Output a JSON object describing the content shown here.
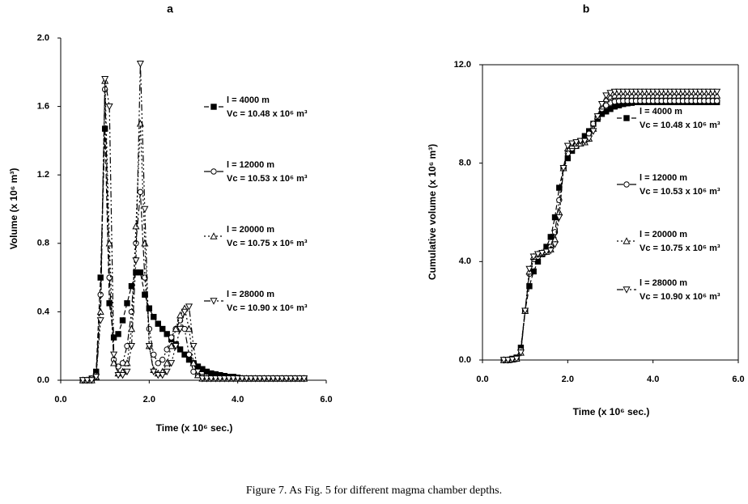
{
  "caption": "Figure 7. As Fig. 5 for different magma chamber depths.",
  "chart_data": [
    {
      "type": "line",
      "title": "a",
      "x_label": "Time (x 10⁶ sec.)",
      "y_label": "Volume (x 10⁶ m³)",
      "xlim": [
        0,
        6
      ],
      "ylim": [
        0,
        2
      ],
      "xticks": [
        {
          "value": 0,
          "label": "0.0"
        },
        {
          "value": 2,
          "label": "2.0"
        },
        {
          "value": 4,
          "label": "4.0"
        },
        {
          "value": 6,
          "label": "6.0"
        }
      ],
      "yticks": [
        {
          "value": 0,
          "label": "0.0"
        },
        {
          "value": 0.4,
          "label": "0.4"
        },
        {
          "value": 0.8,
          "label": "0.8"
        },
        {
          "value": 1.2,
          "label": "1.2"
        },
        {
          "value": 1.6,
          "label": "1.6"
        },
        {
          "value": 2,
          "label": "2.0"
        }
      ],
      "frame": false,
      "x": [
        0.5,
        0.6,
        0.7,
        0.8,
        0.9,
        1.0,
        1.1,
        1.2,
        1.3,
        1.4,
        1.5,
        1.6,
        1.7,
        1.8,
        1.9,
        2.0,
        2.1,
        2.2,
        2.3,
        2.4,
        2.5,
        2.6,
        2.7,
        2.8,
        2.9,
        3.0,
        3.1,
        3.2,
        3.3,
        3.4,
        3.5,
        3.6,
        3.7,
        3.8,
        3.9,
        4.0,
        4.1,
        4.2,
        4.3,
        4.4,
        4.5,
        4.6,
        4.7,
        4.8,
        4.9,
        5.0,
        5.1,
        5.2,
        5.3,
        5.4,
        5.5
      ],
      "series": [
        {
          "name": "l = 4000 m",
          "vc_label": "Vc = 10.48 x 10⁶ m³",
          "color": "#000000",
          "marker": "square",
          "values": [
            0,
            0,
            0.01,
            0.05,
            0.6,
            1.47,
            0.45,
            0.25,
            0.27,
            0.35,
            0.45,
            0.55,
            0.63,
            0.63,
            0.5,
            0.42,
            0.37,
            0.33,
            0.3,
            0.27,
            0.24,
            0.21,
            0.18,
            0.15,
            0.12,
            0.1,
            0.08,
            0.065,
            0.05,
            0.04,
            0.035,
            0.03,
            0.025,
            0.02,
            0.02,
            0.015,
            0.01,
            0.01,
            0.01,
            0.01,
            0.01,
            0.01,
            0.01,
            0.01,
            0.01,
            0.01,
            0.01,
            0.01,
            0.01,
            0.01,
            0.01
          ]
        },
        {
          "name": "l = 12000 m",
          "vc_label": "Vc = 10.53 x 10⁶ m³",
          "color": "#000000",
          "marker": "circle",
          "values": [
            0,
            0,
            0.01,
            0.03,
            0.5,
            1.7,
            0.6,
            0.12,
            0.08,
            0.1,
            0.2,
            0.4,
            0.8,
            1.1,
            0.6,
            0.3,
            0.15,
            0.1,
            0.12,
            0.18,
            0.25,
            0.3,
            0.35,
            0.3,
            0.15,
            0.05,
            0.03,
            0.02,
            0.01,
            0.01,
            0.01,
            0.01,
            0.01,
            0.01,
            0.01,
            0.01,
            0.01,
            0.01,
            0.01,
            0.01,
            0.01,
            0.01,
            0.01,
            0.01,
            0.01,
            0.01,
            0.01,
            0.01,
            0.01,
            0.01,
            0.01
          ]
        },
        {
          "name": "l = 20000 m",
          "vc_label": "Vc = 10.75 x 10⁶ m³",
          "color": "#000000",
          "marker": "triangle",
          "values": [
            0,
            0,
            0,
            0.02,
            0.4,
            1.75,
            0.8,
            0.1,
            0.04,
            0.05,
            0.1,
            0.3,
            0.9,
            1.5,
            0.8,
            0.2,
            0.06,
            0.04,
            0.05,
            0.1,
            0.2,
            0.3,
            0.38,
            0.42,
            0.3,
            0.1,
            0.03,
            0.01,
            0.01,
            0.01,
            0.01,
            0.01,
            0.01,
            0.01,
            0.01,
            0.01,
            0.01,
            0.01,
            0.01,
            0.01,
            0.01,
            0.01,
            0.01,
            0.01,
            0.01,
            0.01,
            0.01,
            0.01,
            0.01,
            0.01,
            0.01
          ]
        },
        {
          "name": "l = 28000 m",
          "vc_label": "Vc = 10.90 x 10⁶ m³",
          "color": "#000000",
          "marker": "down-triangle",
          "values": [
            0,
            0,
            0,
            0.02,
            0.35,
            1.76,
            1.6,
            0.15,
            0.03,
            0.03,
            0.05,
            0.2,
            0.7,
            1.85,
            1.0,
            0.2,
            0.05,
            0.03,
            0.03,
            0.05,
            0.1,
            0.2,
            0.3,
            0.4,
            0.43,
            0.2,
            0.05,
            0.01,
            0.01,
            0.01,
            0.01,
            0.01,
            0.01,
            0.01,
            0.01,
            0.01,
            0.01,
            0.01,
            0.01,
            0.01,
            0.01,
            0.01,
            0.01,
            0.01,
            0.01,
            0.01,
            0.01,
            0.01,
            0.01,
            0.01,
            0.01
          ]
        }
      ]
    },
    {
      "type": "line",
      "title": "b",
      "x_label": "Time (x 10⁶ sec.)",
      "y_label": "Cumulative volume (x 10⁶ m³)",
      "xlim": [
        0,
        6
      ],
      "ylim": [
        0,
        12
      ],
      "xticks": [
        {
          "value": 0,
          "label": "0.0"
        },
        {
          "value": 2,
          "label": "2.0"
        },
        {
          "value": 4,
          "label": "4.0"
        },
        {
          "value": 6,
          "label": "6.0"
        }
      ],
      "yticks": [
        {
          "value": 0,
          "label": "0.0"
        },
        {
          "value": 4,
          "label": "4.0"
        },
        {
          "value": 8,
          "label": "8.0"
        },
        {
          "value": 12,
          "label": "12.0"
        }
      ],
      "frame": true,
      "x": [
        0.5,
        0.6,
        0.7,
        0.8,
        0.9,
        1.0,
        1.1,
        1.2,
        1.3,
        1.4,
        1.5,
        1.6,
        1.7,
        1.8,
        1.9,
        2.0,
        2.1,
        2.2,
        2.3,
        2.4,
        2.5,
        2.6,
        2.7,
        2.8,
        2.9,
        3.0,
        3.1,
        3.2,
        3.3,
        3.4,
        3.5,
        3.6,
        3.7,
        3.8,
        3.9,
        4.0,
        4.1,
        4.2,
        4.3,
        4.4,
        4.5,
        4.6,
        4.7,
        4.8,
        4.9,
        5.0,
        5.1,
        5.2,
        5.3,
        5.4,
        5.5
      ],
      "series": [
        {
          "name": "l = 4000 m",
          "vc_label": "Vc = 10.48 x 10⁶ m³",
          "color": "#000000",
          "marker": "square",
          "values": [
            0,
            0,
            0.05,
            0.1,
            0.5,
            2.0,
            3.0,
            3.6,
            4.0,
            4.3,
            4.6,
            5.0,
            5.8,
            7.0,
            7.8,
            8.2,
            8.5,
            8.7,
            8.9,
            9.1,
            9.3,
            9.6,
            9.8,
            10.0,
            10.1,
            10.2,
            10.3,
            10.35,
            10.4,
            10.43,
            10.45,
            10.48,
            10.48,
            10.48,
            10.48,
            10.48,
            10.48,
            10.48,
            10.48,
            10.48,
            10.48,
            10.48,
            10.48,
            10.48,
            10.48,
            10.48,
            10.48,
            10.48,
            10.48,
            10.48,
            10.48
          ]
        },
        {
          "name": "l = 12000 m",
          "vc_label": "Vc = 10.53 x 10⁶ m³",
          "color": "#000000",
          "marker": "circle",
          "values": [
            0,
            0,
            0.03,
            0.08,
            0.4,
            2.0,
            3.5,
            4.1,
            4.2,
            4.3,
            4.4,
            4.6,
            5.2,
            6.5,
            7.8,
            8.4,
            8.6,
            8.7,
            8.8,
            8.9,
            9.2,
            9.6,
            9.9,
            10.2,
            10.35,
            10.45,
            10.5,
            10.52,
            10.53,
            10.53,
            10.53,
            10.53,
            10.53,
            10.53,
            10.53,
            10.53,
            10.53,
            10.53,
            10.53,
            10.53,
            10.53,
            10.53,
            10.53,
            10.53,
            10.53,
            10.53,
            10.53,
            10.53,
            10.53,
            10.53,
            10.53
          ]
        },
        {
          "name": "l = 20000 m",
          "vc_label": "Vc = 10.75 x 10⁶ m³",
          "color": "#000000",
          "marker": "triangle",
          "values": [
            0,
            0,
            0.02,
            0.05,
            0.3,
            2.0,
            3.6,
            4.2,
            4.3,
            4.35,
            4.4,
            4.5,
            4.9,
            6.0,
            7.8,
            8.6,
            8.7,
            8.8,
            8.8,
            8.85,
            9.0,
            9.4,
            9.9,
            10.3,
            10.6,
            10.7,
            10.75,
            10.75,
            10.75,
            10.75,
            10.75,
            10.75,
            10.75,
            10.75,
            10.75,
            10.75,
            10.75,
            10.75,
            10.75,
            10.75,
            10.75,
            10.75,
            10.75,
            10.75,
            10.75,
            10.75,
            10.75,
            10.75,
            10.75,
            10.75,
            10.75
          ]
        },
        {
          "name": "l = 28000 m",
          "vc_label": "Vc = 10.90 x 10⁶ m³",
          "color": "#000000",
          "marker": "down-triangle",
          "values": [
            0,
            0,
            0.02,
            0.05,
            0.3,
            2.0,
            3.7,
            4.2,
            4.3,
            4.35,
            4.4,
            4.45,
            4.7,
            5.8,
            7.8,
            8.7,
            8.8,
            8.85,
            8.9,
            8.9,
            9.0,
            9.3,
            9.9,
            10.4,
            10.75,
            10.85,
            10.9,
            10.9,
            10.9,
            10.9,
            10.9,
            10.9,
            10.9,
            10.9,
            10.9,
            10.9,
            10.9,
            10.9,
            10.9,
            10.9,
            10.9,
            10.9,
            10.9,
            10.9,
            10.9,
            10.9,
            10.9,
            10.9,
            10.9,
            10.9,
            10.9
          ]
        }
      ]
    }
  ]
}
